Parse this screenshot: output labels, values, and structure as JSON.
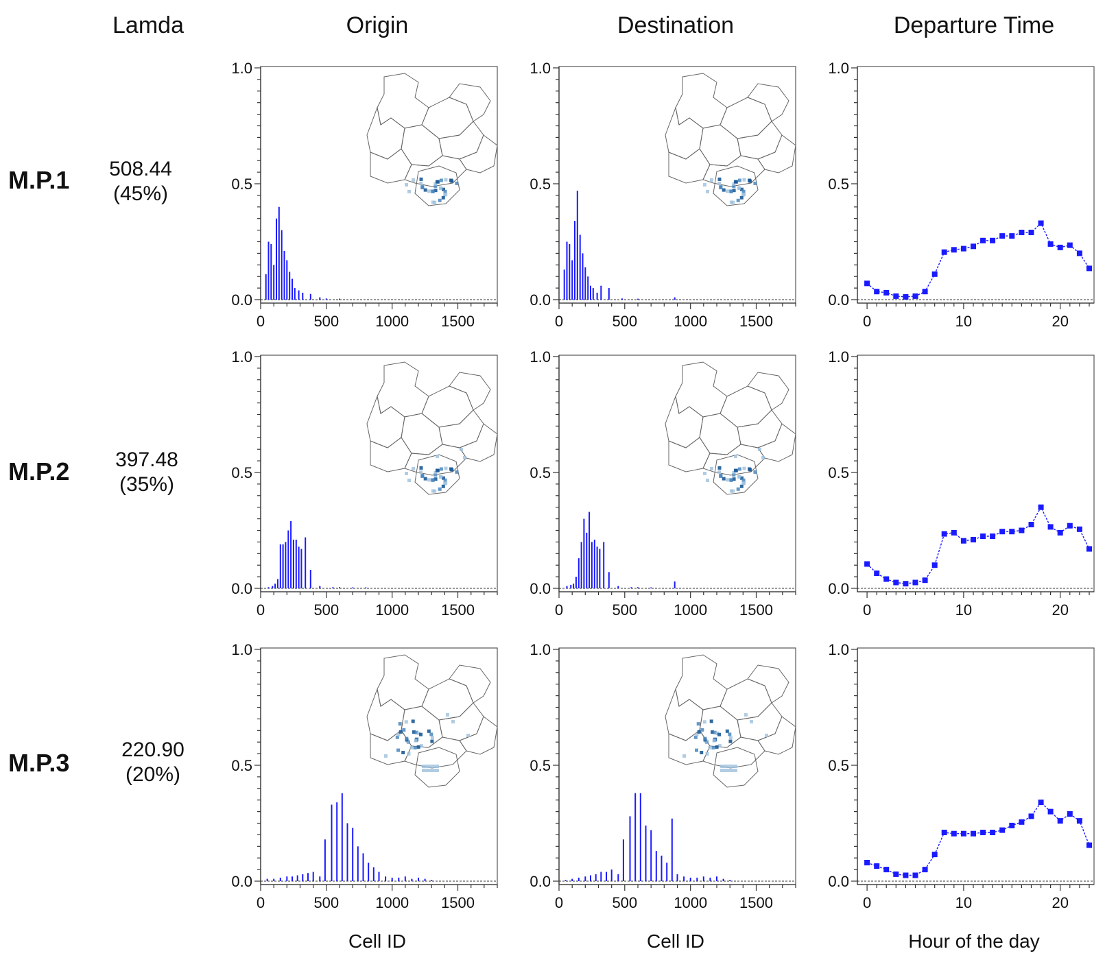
{
  "header": {
    "lamda": "Lamda",
    "columns": [
      "Origin",
      "Destination",
      "Departure Time"
    ]
  },
  "rows": [
    {
      "label": "M.P.1",
      "lamda_value": "508.44",
      "lamda_pct": "(45%)"
    },
    {
      "label": "M.P.2",
      "lamda_value": "397.48",
      "lamda_pct": "(35%)"
    },
    {
      "label": "M.P.3",
      "lamda_value": "220.90",
      "lamda_pct": "(20%)"
    }
  ],
  "xlabels": [
    "Cell ID",
    "Cell ID",
    "Hour of the day"
  ],
  "colors": {
    "series": "#1a1aff",
    "map_light": "#9fc0dc",
    "map_dark": "#1c5a96"
  },
  "chart_data": [
    {
      "type": "bar",
      "row": "M.P.1",
      "panel": "Origin",
      "xlabel": "Cell ID",
      "xlim": [
        0,
        1800
      ],
      "ylim": [
        0,
        1.0
      ],
      "xticks": [
        "0",
        "500",
        "1000",
        "1500"
      ],
      "yticks": [
        "0.0",
        "0.5",
        "1.0"
      ],
      "x": [
        40,
        60,
        80,
        100,
        120,
        140,
        160,
        180,
        200,
        220,
        240,
        260,
        290,
        320,
        380,
        450,
        500,
        600
      ],
      "values": [
        0.11,
        0.25,
        0.24,
        0.15,
        0.35,
        0.4,
        0.3,
        0.21,
        0.17,
        0.12,
        0.09,
        0.05,
        0.04,
        0.03,
        0.025,
        0.01,
        0.005,
        0.004
      ]
    },
    {
      "type": "bar",
      "row": "M.P.1",
      "panel": "Destination",
      "xlabel": "Cell ID",
      "xlim": [
        0,
        1800
      ],
      "ylim": [
        0,
        1.0
      ],
      "xticks": [
        "0",
        "500",
        "1000",
        "1500"
      ],
      "yticks": [
        "0.0",
        "0.5",
        "1.0"
      ],
      "x": [
        40,
        60,
        80,
        100,
        120,
        140,
        160,
        180,
        200,
        220,
        240,
        260,
        290,
        320,
        380,
        480,
        600,
        880
      ],
      "values": [
        0.13,
        0.25,
        0.24,
        0.17,
        0.34,
        0.47,
        0.28,
        0.2,
        0.14,
        0.1,
        0.06,
        0.05,
        0.03,
        0.06,
        0.05,
        0.005,
        0.004,
        0.01
      ]
    },
    {
      "type": "line",
      "row": "M.P.1",
      "panel": "Departure Time",
      "xlabel": "Hour of the day",
      "xlim": [
        -1,
        23.5
      ],
      "ylim": [
        0,
        1.0
      ],
      "xticks": [
        "0",
        "10",
        "20"
      ],
      "yticks": [
        "0.0",
        "0.5",
        "1.0"
      ],
      "x": [
        0,
        1,
        2,
        3,
        4,
        5,
        6,
        7,
        8,
        9,
        10,
        11,
        12,
        13,
        14,
        15,
        16,
        17,
        18,
        19,
        20,
        21,
        22,
        23
      ],
      "values": [
        0.07,
        0.035,
        0.03,
        0.015,
        0.012,
        0.015,
        0.035,
        0.11,
        0.205,
        0.215,
        0.22,
        0.23,
        0.255,
        0.255,
        0.275,
        0.275,
        0.29,
        0.29,
        0.33,
        0.24,
        0.225,
        0.235,
        0.2,
        0.135
      ]
    },
    {
      "type": "bar",
      "row": "M.P.2",
      "panel": "Origin",
      "xlabel": "Cell ID",
      "xlim": [
        0,
        1800
      ],
      "ylim": [
        0,
        1.0
      ],
      "xticks": [
        "0",
        "500",
        "1000",
        "1500"
      ],
      "yticks": [
        "0.0",
        "0.5",
        "1.0"
      ],
      "x": [
        60,
        90,
        110,
        130,
        150,
        170,
        190,
        210,
        230,
        250,
        270,
        290,
        310,
        340,
        380,
        450,
        550,
        600,
        700,
        800
      ],
      "values": [
        0.005,
        0.01,
        0.02,
        0.04,
        0.19,
        0.19,
        0.2,
        0.25,
        0.29,
        0.21,
        0.21,
        0.18,
        0.17,
        0.22,
        0.08,
        0.01,
        0.005,
        0.005,
        0.004,
        0.004
      ]
    },
    {
      "type": "bar",
      "row": "M.P.2",
      "panel": "Destination",
      "xlabel": "Cell ID",
      "xlim": [
        0,
        1800
      ],
      "ylim": [
        0,
        1.0
      ],
      "xticks": [
        "0",
        "500",
        "1000",
        "1500"
      ],
      "yticks": [
        "0.0",
        "0.5",
        "1.0"
      ],
      "x": [
        60,
        90,
        110,
        130,
        150,
        170,
        190,
        210,
        230,
        250,
        270,
        290,
        310,
        340,
        380,
        450,
        550,
        600,
        700,
        880
      ],
      "values": [
        0.01,
        0.015,
        0.02,
        0.05,
        0.13,
        0.2,
        0.3,
        0.24,
        0.33,
        0.2,
        0.21,
        0.18,
        0.17,
        0.2,
        0.07,
        0.01,
        0.005,
        0.005,
        0.004,
        0.03
      ]
    },
    {
      "type": "line",
      "row": "M.P.2",
      "panel": "Departure Time",
      "xlabel": "Hour of the day",
      "xlim": [
        -1,
        23.5
      ],
      "ylim": [
        0,
        1.0
      ],
      "xticks": [
        "0",
        "10",
        "20"
      ],
      "yticks": [
        "0.0",
        "0.5",
        "1.0"
      ],
      "x": [
        0,
        1,
        2,
        3,
        4,
        5,
        6,
        7,
        8,
        9,
        10,
        11,
        12,
        13,
        14,
        15,
        16,
        17,
        18,
        19,
        20,
        21,
        22,
        23
      ],
      "values": [
        0.105,
        0.065,
        0.04,
        0.025,
        0.02,
        0.025,
        0.035,
        0.1,
        0.235,
        0.24,
        0.205,
        0.21,
        0.225,
        0.225,
        0.245,
        0.245,
        0.25,
        0.275,
        0.35,
        0.265,
        0.24,
        0.27,
        0.255,
        0.17
      ]
    },
    {
      "type": "bar",
      "row": "M.P.3",
      "panel": "Origin",
      "xlabel": "Cell ID",
      "xlim": [
        0,
        1800
      ],
      "ylim": [
        0,
        1.0
      ],
      "xticks": [
        "0",
        "500",
        "1000",
        "1500"
      ],
      "yticks": [
        "0.0",
        "0.5",
        "1.0"
      ],
      "x": [
        50,
        100,
        150,
        200,
        240,
        280,
        320,
        360,
        400,
        450,
        490,
        540,
        580,
        620,
        660,
        700,
        740,
        780,
        820,
        860,
        900,
        950,
        1000,
        1050,
        1100,
        1150,
        1200,
        1250,
        1300
      ],
      "values": [
        0.01,
        0.01,
        0.015,
        0.02,
        0.02,
        0.025,
        0.03,
        0.035,
        0.04,
        0.02,
        0.18,
        0.33,
        0.34,
        0.38,
        0.25,
        0.23,
        0.15,
        0.12,
        0.08,
        0.06,
        0.04,
        0.02,
        0.015,
        0.015,
        0.02,
        0.01,
        0.015,
        0.01,
        0.005
      ]
    },
    {
      "type": "bar",
      "row": "M.P.3",
      "panel": "Destination",
      "xlabel": "Cell ID",
      "xlim": [
        0,
        1800
      ],
      "ylim": [
        0,
        1.0
      ],
      "xticks": [
        "0",
        "500",
        "1000",
        "1500"
      ],
      "yticks": [
        "0.0",
        "0.5",
        "1.0"
      ],
      "x": [
        50,
        100,
        150,
        200,
        240,
        280,
        320,
        360,
        400,
        450,
        490,
        540,
        580,
        620,
        660,
        700,
        740,
        780,
        820,
        860,
        900,
        950,
        1000,
        1050,
        1100,
        1150,
        1200,
        1250,
        1300
      ],
      "values": [
        0.005,
        0.01,
        0.015,
        0.02,
        0.025,
        0.03,
        0.04,
        0.04,
        0.05,
        0.03,
        0.18,
        0.28,
        0.38,
        0.38,
        0.24,
        0.22,
        0.13,
        0.11,
        0.08,
        0.27,
        0.03,
        0.02,
        0.015,
        0.015,
        0.02,
        0.015,
        0.02,
        0.01,
        0.005
      ]
    },
    {
      "type": "line",
      "row": "M.P.3",
      "panel": "Departure Time",
      "xlabel": "Hour of the day",
      "xlim": [
        -1,
        23.5
      ],
      "ylim": [
        0,
        1.0
      ],
      "xticks": [
        "0",
        "10",
        "20"
      ],
      "yticks": [
        "0.0",
        "0.5",
        "1.0"
      ],
      "x": [
        0,
        1,
        2,
        3,
        4,
        5,
        6,
        7,
        8,
        9,
        10,
        11,
        12,
        13,
        14,
        15,
        16,
        17,
        18,
        19,
        20,
        21,
        22,
        23
      ],
      "values": [
        0.08,
        0.065,
        0.05,
        0.03,
        0.025,
        0.025,
        0.05,
        0.115,
        0.21,
        0.205,
        0.205,
        0.205,
        0.21,
        0.21,
        0.22,
        0.24,
        0.255,
        0.28,
        0.34,
        0.3,
        0.26,
        0.29,
        0.26,
        0.155
      ]
    }
  ]
}
